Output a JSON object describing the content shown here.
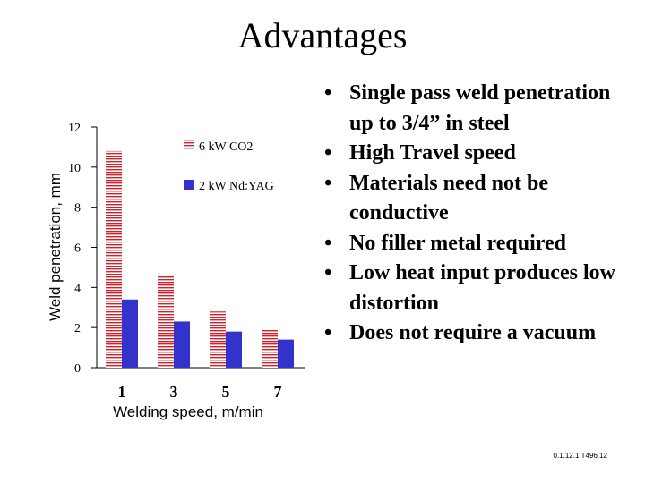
{
  "slide": {
    "title": "Advantages",
    "code": "0.1.12.1.T496.12"
  },
  "bullets": [
    {
      "text": "Single pass weld penetration up to 3/4” in steel"
    },
    {
      "text": "High Travel speed"
    },
    {
      "text": "Materials need not be conductive"
    },
    {
      "text": "No filler metal required"
    },
    {
      "text": "Low  heat input produces low  distortion"
    },
    {
      "text": "Does not require a vacuum"
    }
  ],
  "chart_data": {
    "type": "bar",
    "title": "",
    "xlabel": "Welding speed, m/min",
    "ylabel": "Weld penetration, mm",
    "categories": [
      "1",
      "3",
      "5",
      "7"
    ],
    "ylim": [
      0,
      12
    ],
    "yticks": [
      0,
      2,
      4,
      6,
      8,
      10,
      12
    ],
    "grid": false,
    "legend_position": "top-right",
    "series": [
      {
        "name": "6 kW CO2",
        "values": [
          10.8,
          4.6,
          2.8,
          1.9
        ],
        "color": "#d0202a",
        "pattern": "horizontal-stripes"
      },
      {
        "name": "2 kW Nd:YAG",
        "values": [
          3.4,
          2.3,
          1.8,
          1.4
        ],
        "color": "#3333cc",
        "pattern": "solid"
      }
    ]
  }
}
